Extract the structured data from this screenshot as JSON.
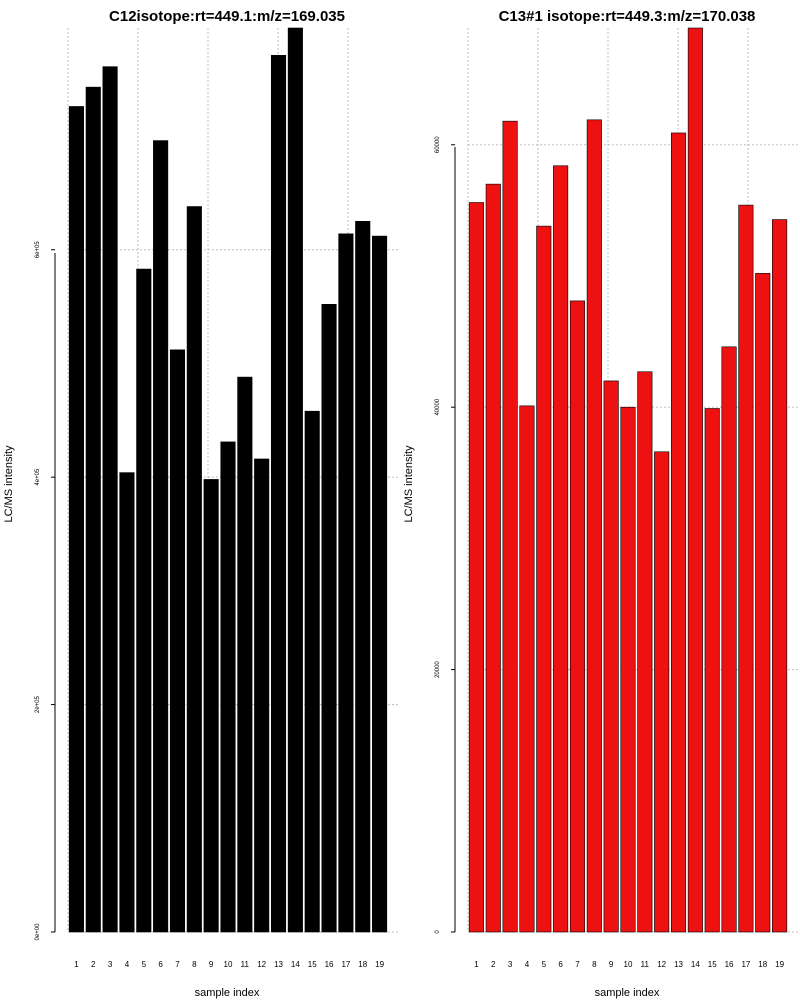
{
  "chart_data": [
    {
      "type": "bar",
      "title": "C12isotope:rt=449.1:m/z=169.035",
      "xlabel": "sample index",
      "ylabel": "LC/MS intensity",
      "categories": [
        "1",
        "2",
        "3",
        "4",
        "5",
        "6",
        "7",
        "8",
        "9",
        "10",
        "11",
        "12",
        "13",
        "14",
        "15",
        "16",
        "17",
        "18",
        "19"
      ],
      "values": [
        726000,
        743000,
        761000,
        404000,
        583000,
        696000,
        512000,
        638000,
        398000,
        431000,
        488000,
        416000,
        771000,
        795000,
        458000,
        552000,
        614000,
        625000,
        612000
      ],
      "ylim": [
        0,
        795000
      ],
      "yticks": [
        0,
        200000,
        400000,
        600000
      ],
      "ytick_labels": [
        "0e+00",
        "2e+05",
        "4e+05",
        "6e+05"
      ],
      "bar_color": "#000000",
      "grid": true
    },
    {
      "type": "bar",
      "title": "C13#1 isotope:rt=449.3:m/z=170.038",
      "xlabel": "sample index",
      "ylabel": "LC/MS intensity",
      "categories": [
        "1",
        "2",
        "3",
        "4",
        "5",
        "6",
        "7",
        "8",
        "9",
        "10",
        "11",
        "12",
        "13",
        "14",
        "15",
        "16",
        "17",
        "18",
        "19"
      ],
      "values": [
        55600,
        57000,
        61800,
        40100,
        53800,
        58400,
        48100,
        61900,
        42000,
        40000,
        42700,
        36600,
        60900,
        68900,
        39900,
        44600,
        55400,
        50200,
        54300
      ],
      "ylim": [
        0,
        68900
      ],
      "yticks": [
        0,
        20000,
        40000,
        60000
      ],
      "ytick_labels": [
        "0",
        "20000",
        "40000",
        "60000"
      ],
      "bar_color": "#ee1111",
      "grid": true
    }
  ]
}
